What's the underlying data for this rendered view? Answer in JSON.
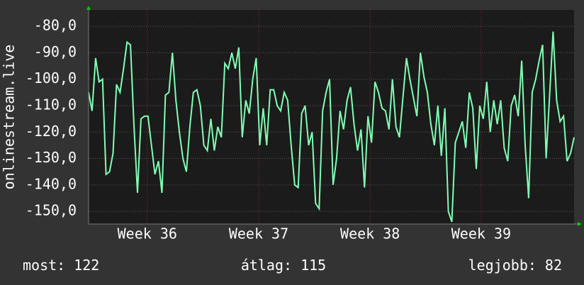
{
  "chart_data": {
    "type": "line",
    "y_label": "onlinestream.live",
    "color": "#80ffb4",
    "values": [
      -105,
      -112,
      -92,
      -101,
      -100,
      -136,
      -135,
      -128,
      -102,
      -105,
      -96,
      -86,
      -87,
      -118,
      -143,
      -115,
      -114,
      -114,
      -125,
      -136,
      -131,
      -143,
      -106,
      -105,
      -90,
      -108,
      -120,
      -130,
      -135,
      -118,
      -105,
      -104,
      -110,
      -125,
      -127,
      -115,
      -127,
      -118,
      -122,
      -94,
      -96,
      -90,
      -96,
      -88,
      -122,
      -108,
      -113,
      -100,
      -92,
      -125,
      -111,
      -125,
      -104,
      -104,
      -110,
      -112,
      -105,
      -108,
      -125,
      -140,
      -141,
      -113,
      -110,
      -125,
      -120,
      -147,
      -149,
      -112,
      -105,
      -100,
      -140,
      -130,
      -112,
      -119,
      -108,
      -103,
      -117,
      -127,
      -119,
      -141,
      -114,
      -124,
      -101,
      -105,
      -111,
      -112,
      -119,
      -100,
      -118,
      -122,
      -107,
      -92,
      -100,
      -107,
      -114,
      -90,
      -99,
      -105,
      -117,
      -125,
      -110,
      -129,
      -111,
      -150,
      -154,
      -124,
      -120,
      -116,
      -126,
      -105,
      -111,
      -134,
      -110,
      -115,
      -101,
      -120,
      -108,
      -117,
      -108,
      -126,
      -131,
      -110,
      -106,
      -114,
      -93,
      -125,
      -145,
      -105,
      -100,
      -93,
      -87,
      -130,
      -106,
      -82,
      -108,
      -116,
      -114,
      -131,
      -128,
      -122
    ],
    "xlim": [
      0,
      139
    ],
    "xticks": [
      {
        "value": 16.8,
        "label": "Week 36"
      },
      {
        "value": 48.7,
        "label": "Week 37"
      },
      {
        "value": 80.6,
        "label": "Week 38"
      },
      {
        "value": 112.4,
        "label": "Week 39"
      }
    ],
    "ylim": [
      -154.8,
      -73.8
    ],
    "yticks": [
      {
        "value": -80,
        "label": "-80,0"
      },
      {
        "value": -90,
        "label": "-90,0"
      },
      {
        "value": -100,
        "label": "-100,0"
      },
      {
        "value": -110,
        "label": "-110,0"
      },
      {
        "value": -120,
        "label": "-120,0"
      },
      {
        "value": -130,
        "label": "-130,0"
      },
      {
        "value": -140,
        "label": "-140,0"
      },
      {
        "value": -150,
        "label": "-150,0"
      }
    ],
    "grid": true,
    "stats": [
      {
        "label": "most:",
        "value": 122
      },
      {
        "label": "átlag:",
        "value": 115
      },
      {
        "label": "legjobb:",
        "value": 82
      }
    ]
  }
}
